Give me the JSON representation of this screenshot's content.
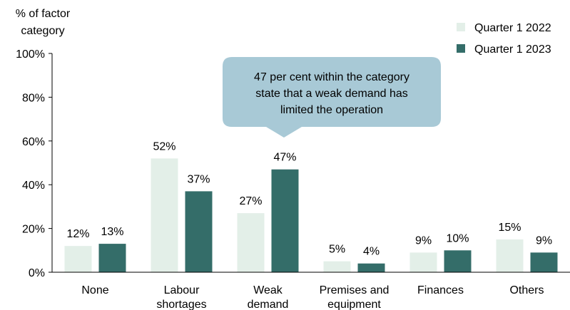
{
  "chart_data": {
    "type": "bar",
    "title": "",
    "xlabel": "",
    "ylabel": "% of factor category",
    "ylabel_lines": [
      "% of factor",
      "category"
    ],
    "ylim": [
      0,
      100
    ],
    "yticks": [
      0,
      20,
      40,
      60,
      80,
      100
    ],
    "ytick_labels": [
      "0%",
      "20%",
      "40%",
      "60%",
      "80%",
      "100%"
    ],
    "grid": false,
    "legend_position": "top-right",
    "categories": [
      "None",
      "Labour shortages",
      "Weak demand",
      "Premises and equipment",
      "Finances",
      "Others"
    ],
    "category_lines": [
      [
        "None"
      ],
      [
        "Labour",
        "shortages"
      ],
      [
        "Weak",
        "demand"
      ],
      [
        "Premises and",
        "equipment"
      ],
      [
        "Finances"
      ],
      [
        "Others"
      ]
    ],
    "series": [
      {
        "name": "Quarter 1 2022",
        "color": "#e3efe8",
        "values": [
          12,
          52,
          27,
          5,
          9,
          15
        ]
      },
      {
        "name": "Quarter 1 2023",
        "color": "#346d69",
        "values": [
          13,
          37,
          47,
          4,
          10,
          9
        ]
      }
    ],
    "value_suffix": "%",
    "annotation": {
      "text": "47 per cent within the category state that a weak demand has limited the operation",
      "lines": [
        "47 per cent within the category",
        "state that a weak demand has",
        "limited the operation"
      ],
      "category": "Weak demand",
      "color": "#a8c9d6"
    }
  }
}
